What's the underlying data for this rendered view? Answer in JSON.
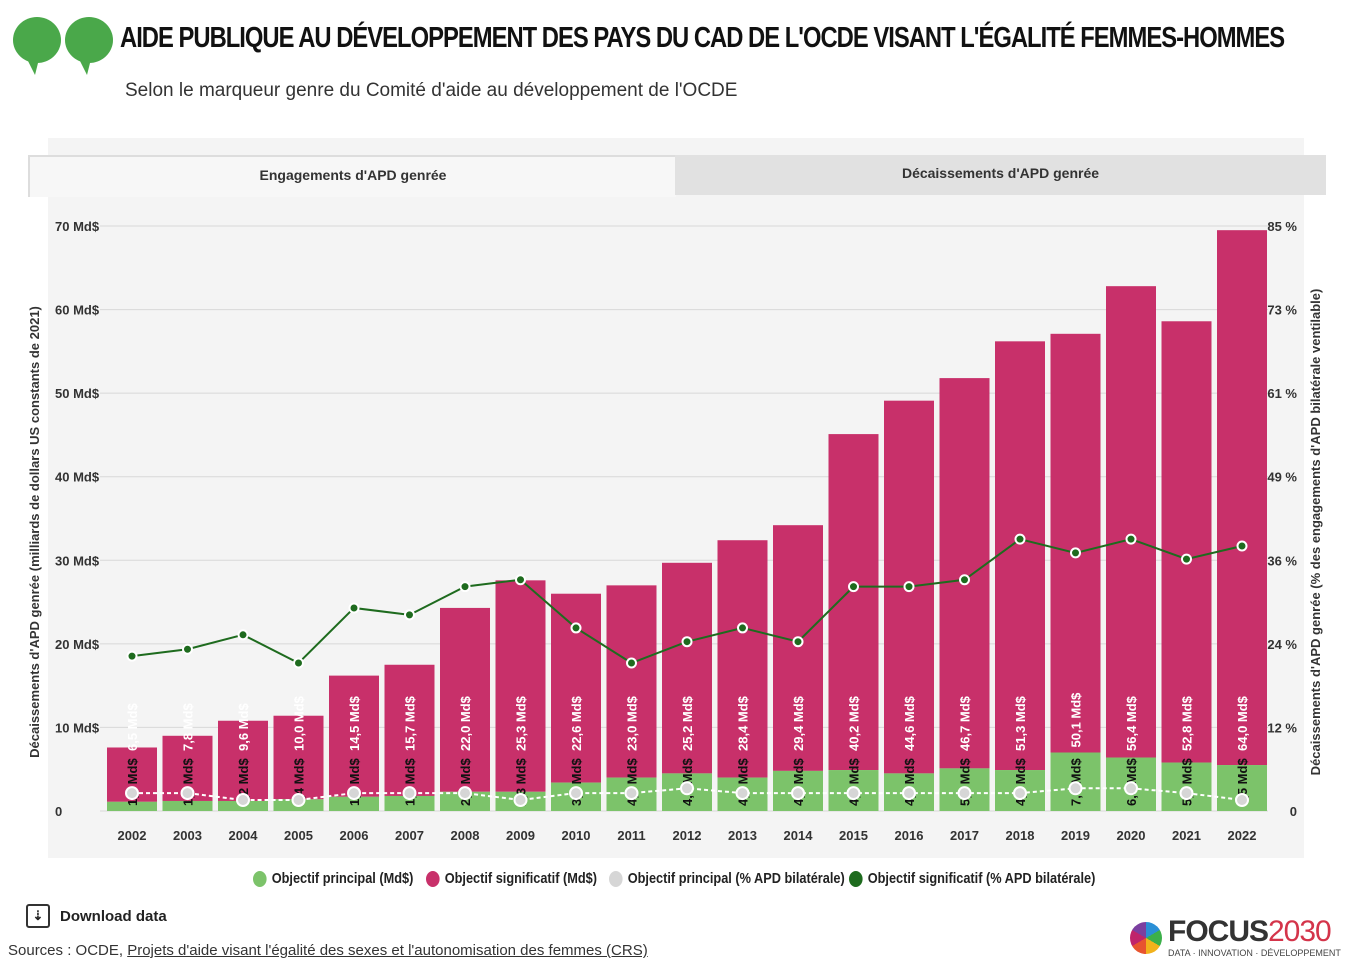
{
  "header": {
    "title": "AIDE PUBLIQUE AU DÉVELOPPEMENT DES PAYS DU CAD DE L'OCDE VISANT L'ÉGALITÉ FEMMES-HOMMES",
    "subtitle": "Selon le marqueur genre du Comité d'aide au développement de l'OCDE"
  },
  "tabs": [
    {
      "label": "Engagements d'APD genrée"
    },
    {
      "label": "Décaissements d'APD genrée"
    }
  ],
  "colors": {
    "principal": "#7cc36a",
    "significant": "#c8306a",
    "principal_pct": "#d6d6d6",
    "significant_pct": "#1e6b1e"
  },
  "chart_data": {
    "type": "bar",
    "stacked": true,
    "categories": [
      "2002",
      "2003",
      "2004",
      "2005",
      "2006",
      "2007",
      "2008",
      "2009",
      "2010",
      "2011",
      "2012",
      "2013",
      "2014",
      "2015",
      "2016",
      "2017",
      "2018",
      "2019",
      "2020",
      "2021",
      "2022"
    ],
    "series": [
      {
        "name": "Objectif principal (Md$)",
        "axis": "left",
        "type": "bar",
        "values": [
          1.1,
          1.2,
          1.2,
          1.4,
          1.7,
          1.8,
          2.3,
          2.3,
          3.4,
          4.0,
          4.5,
          4.0,
          4.8,
          4.9,
          4.5,
          5.1,
          4.9,
          7.0,
          6.4,
          5.8,
          5.5
        ],
        "labels": [
          "1,1 Md$",
          "1,2 Md$",
          "1,2 Md$",
          "1,4 Md$",
          "1,7 Md$",
          "1,8 Md$",
          "2,3 Md$",
          "2,3 Md$",
          "3,4 Md$",
          "4,0 Md$",
          "4,5 Md$",
          "4,0 Md$",
          "4,8 Md$",
          "4,9 Md$",
          "4,5 Md$",
          "5,1 Md$",
          "4,9 Md$",
          "7,0 Md$",
          "6,4 Md$",
          "5,8 Md$",
          "5,5 Md$"
        ]
      },
      {
        "name": "Objectif significatif (Md$)",
        "axis": "left",
        "type": "bar",
        "values": [
          6.5,
          7.8,
          9.6,
          10.0,
          14.5,
          15.7,
          22.0,
          25.3,
          22.6,
          23.0,
          25.2,
          28.4,
          29.4,
          40.2,
          44.6,
          46.7,
          51.3,
          50.1,
          56.4,
          52.8,
          64.0
        ],
        "labels": [
          "6,5 Md$",
          "7,8 Md$",
          "9,6 Md$",
          "10,0 Md$",
          "14,5 Md$",
          "15,7 Md$",
          "22,0 Md$",
          "25,3 Md$",
          "22,6 Md$",
          "23,0 Md$",
          "25,2 Md$",
          "28,4 Md$",
          "29,4 Md$",
          "40,2 Md$",
          "44,6 Md$",
          "46,7 Md$",
          "51,3 Md$",
          "50,1 Md$",
          "56,4 Md$",
          "52,8 Md$",
          "64,0 Md$"
        ]
      },
      {
        "name": "Objectif principal (% APD bilatérale)",
        "axis": "right",
        "type": "line",
        "values": [
          2.6,
          2.6,
          1.6,
          1.6,
          2.6,
          2.6,
          2.6,
          1.6,
          2.6,
          2.6,
          3.3,
          2.6,
          2.6,
          2.6,
          2.6,
          2.6,
          2.6,
          3.3,
          3.3,
          2.6,
          1.6
        ]
      },
      {
        "name": "Objectif significatif (% APD bilatérale)",
        "axis": "right",
        "type": "line",
        "values": [
          22.5,
          23.5,
          25.6,
          21.5,
          29.5,
          28.5,
          32.6,
          33.6,
          26.6,
          21.5,
          24.6,
          26.6,
          24.6,
          32.6,
          32.6,
          33.6,
          39.5,
          37.5,
          39.5,
          36.6,
          38.5
        ]
      }
    ],
    "ylim": [
      0,
      70
    ],
    "yticks": [
      "0",
      "10 Md$",
      "20 Md$",
      "30 Md$",
      "40 Md$",
      "50 Md$",
      "60 Md$",
      "70 Md$"
    ],
    "y2lim": [
      0,
      85
    ],
    "y2ticks": [
      "0",
      "12 %",
      "24 %",
      "36 %",
      "49 %",
      "61 %",
      "73 %",
      "85 %"
    ],
    "ylabel": "Décaissements d'APD genrée (milliards de dollars US constants de 2021)",
    "y2label": "Décaissements d'APD genrée (% des engagements d'APD bilatérale ventilable)",
    "legend_position": "bottom",
    "grid": true
  },
  "footer": {
    "download": "Download data",
    "sources_prefix": "Sources : OCDE, ",
    "sources_link": "Projets d'aide visant l'égalité des sexes et l'autonomisation des femmes (CRS)",
    "logo_text": "FOCUS",
    "logo_year": "2030",
    "logo_tagline": "DATA · INNOVATION · DÉVELOPPEMENT"
  }
}
